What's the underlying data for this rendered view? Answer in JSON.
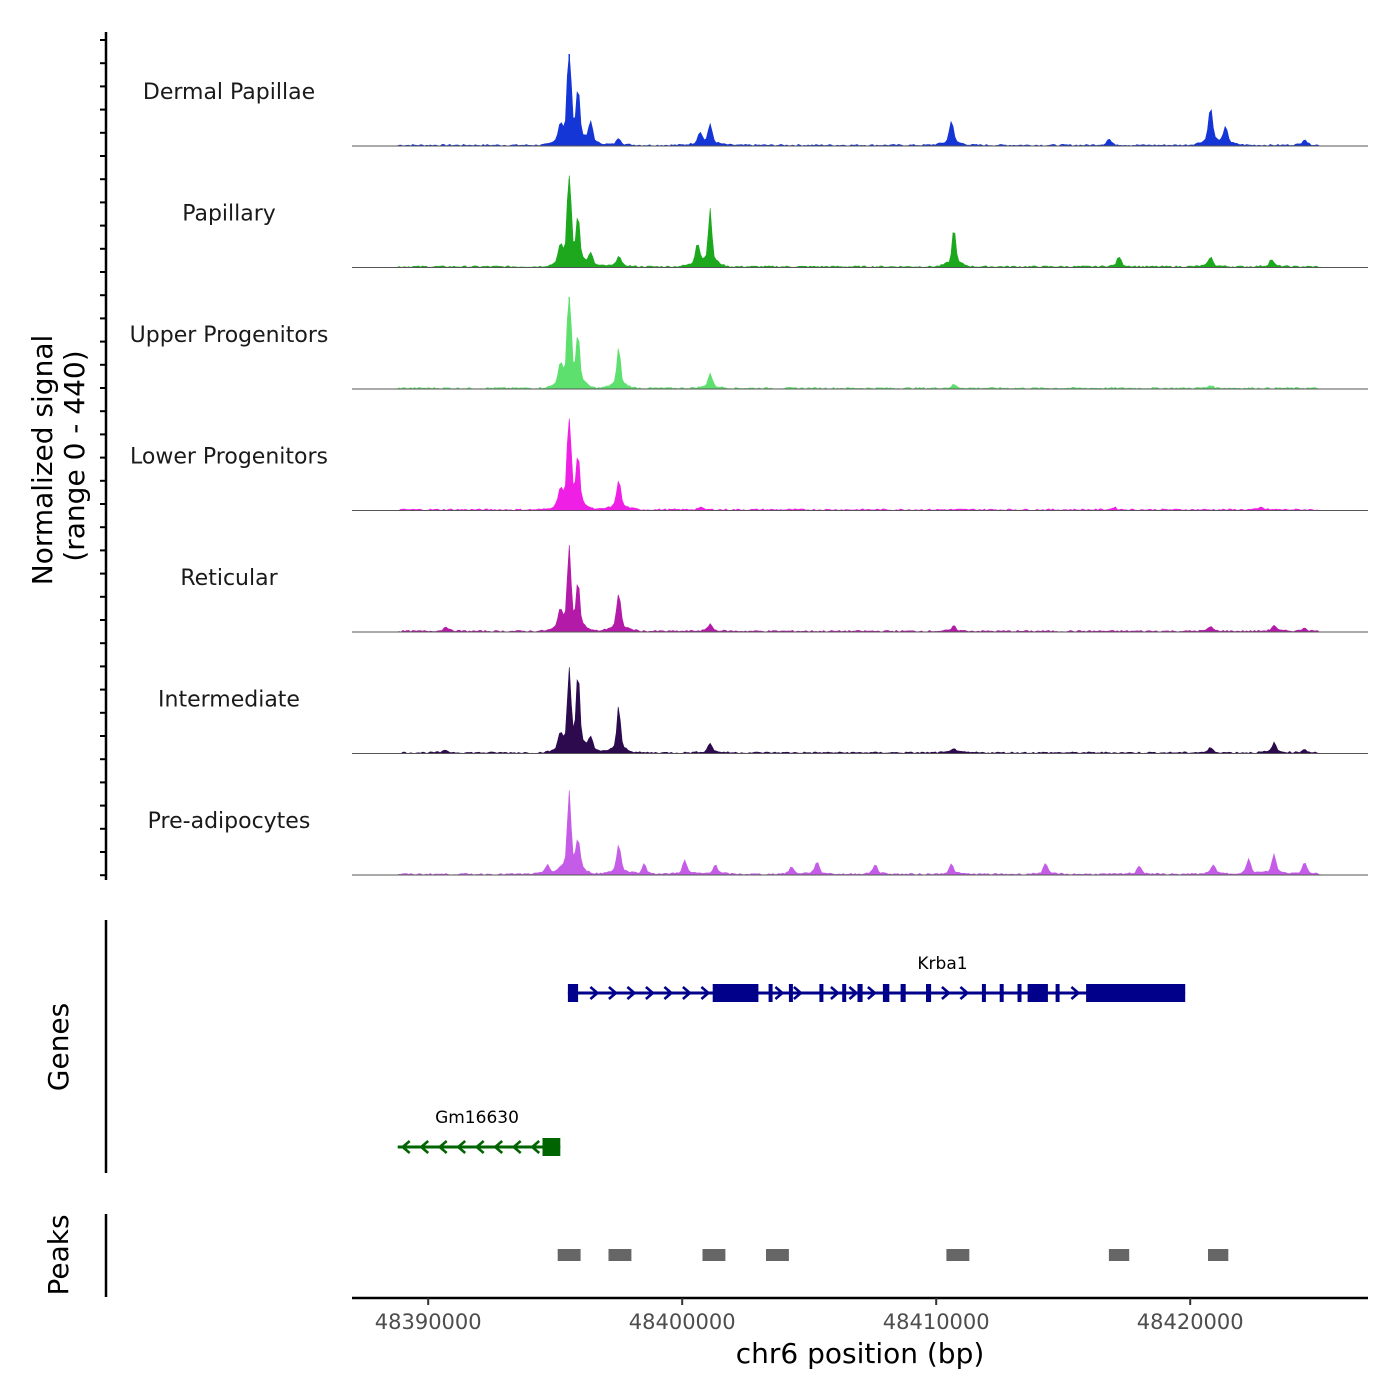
{
  "chart_data": {
    "type": "area",
    "chromosome": "chr6",
    "xlabel": "chr6 position (bp)",
    "ylabel": "Normalized signal",
    "ylabel_range": "(range 0 - 440)",
    "xlim": [
      48387000,
      48427000
    ],
    "ylim": [
      0,
      440
    ],
    "x_ticks": [
      48390000,
      48400000,
      48410000,
      48420000
    ],
    "x_tick_labels": [
      "48390000",
      "48400000",
      "48410000",
      "48420000"
    ],
    "tracks": [
      {
        "name": "Dermal Papillae",
        "color": "#1536d6",
        "peaks": [
          [
            48395200,
            60
          ],
          [
            48395550,
            440
          ],
          [
            48395900,
            200
          ],
          [
            48396400,
            90
          ],
          [
            48397500,
            30
          ],
          [
            48400700,
            50
          ],
          [
            48401100,
            80
          ],
          [
            48410600,
            100
          ],
          [
            48416800,
            25
          ],
          [
            48420800,
            150
          ],
          [
            48421400,
            70
          ],
          [
            48424500,
            25
          ]
        ]
      },
      {
        "name": "Papillary",
        "color": "#1da81d",
        "peaks": [
          [
            48395200,
            60
          ],
          [
            48395550,
            420
          ],
          [
            48395900,
            180
          ],
          [
            48396400,
            50
          ],
          [
            48397500,
            45
          ],
          [
            48400600,
            90
          ],
          [
            48401100,
            230
          ],
          [
            48410700,
            160
          ],
          [
            48417200,
            40
          ],
          [
            48420800,
            40
          ],
          [
            48423200,
            30
          ]
        ]
      },
      {
        "name": "Upper Progenitors",
        "color": "#5ee06e",
        "peaks": [
          [
            48395200,
            70
          ],
          [
            48395550,
            440
          ],
          [
            48395900,
            190
          ],
          [
            48397500,
            170
          ],
          [
            48401100,
            60
          ],
          [
            48410700,
            15
          ],
          [
            48420800,
            12
          ]
        ]
      },
      {
        "name": "Lower Progenitors",
        "color": "#f01fe6",
        "peaks": [
          [
            48395200,
            60
          ],
          [
            48395550,
            420
          ],
          [
            48395900,
            200
          ],
          [
            48397500,
            120
          ],
          [
            48400700,
            10
          ],
          [
            48417000,
            10
          ],
          [
            48422800,
            10
          ]
        ]
      },
      {
        "name": "Reticular",
        "color": "#b31aa8",
        "peaks": [
          [
            48390700,
            20
          ],
          [
            48395200,
            70
          ],
          [
            48395550,
            330
          ],
          [
            48395900,
            180
          ],
          [
            48397500,
            150
          ],
          [
            48401100,
            30
          ],
          [
            48410700,
            20
          ],
          [
            48420800,
            20
          ],
          [
            48423300,
            25
          ],
          [
            48424500,
            15
          ]
        ]
      },
      {
        "name": "Intermediate",
        "color": "#2d0a4e",
        "peaks": [
          [
            48390700,
            10
          ],
          [
            48395200,
            60
          ],
          [
            48395550,
            320
          ],
          [
            48395900,
            300
          ],
          [
            48396400,
            60
          ],
          [
            48397500,
            190
          ],
          [
            48401100,
            40
          ],
          [
            48410700,
            20
          ],
          [
            48420800,
            20
          ],
          [
            48423300,
            40
          ],
          [
            48424500,
            15
          ]
        ]
      },
      {
        "name": "Pre-adipocytes",
        "color": "#c45ce8",
        "peaks": [
          [
            48394700,
            40
          ],
          [
            48395550,
            330
          ],
          [
            48395900,
            120
          ],
          [
            48397500,
            120
          ],
          [
            48398500,
            40
          ],
          [
            48400100,
            55
          ],
          [
            48401300,
            40
          ],
          [
            48404300,
            30
          ],
          [
            48405300,
            50
          ],
          [
            48407600,
            40
          ],
          [
            48410600,
            40
          ],
          [
            48414300,
            40
          ],
          [
            48418000,
            35
          ],
          [
            48420900,
            40
          ],
          [
            48422300,
            60
          ],
          [
            48423300,
            80
          ],
          [
            48424500,
            50
          ]
        ]
      }
    ],
    "genes": [
      {
        "name": "Krba1",
        "color": "#00008b",
        "strand": "+",
        "start": 48395500,
        "end": 48419800,
        "exons": [
          [
            48395500,
            48395900
          ],
          [
            48401200,
            48403000
          ],
          [
            48403400,
            48403550
          ],
          [
            48404200,
            48404350
          ],
          [
            48405400,
            48405550
          ],
          [
            48406300,
            48406450
          ],
          [
            48406900,
            48407100
          ],
          [
            48407900,
            48408150
          ],
          [
            48408600,
            48408800
          ],
          [
            48409600,
            48409800
          ],
          [
            48411800,
            48411950
          ],
          [
            48412500,
            48412650
          ],
          [
            48413200,
            48413350
          ],
          [
            48413600,
            48414400
          ],
          [
            48414700,
            48414850
          ],
          [
            48415900,
            48419800
          ]
        ]
      },
      {
        "name": "Gm16630",
        "color": "#006400",
        "strand": "-",
        "start": 48388800,
        "end": 48395200,
        "exons": [
          [
            48394500,
            48395200
          ]
        ]
      }
    ],
    "peaks_track": {
      "label": "Peaks",
      "color": "#666666",
      "regions": [
        [
          48395100,
          48396000
        ],
        [
          48397100,
          48398000
        ],
        [
          48400800,
          48401700
        ],
        [
          48403300,
          48404200
        ],
        [
          48410400,
          48411300
        ],
        [
          48416800,
          48417600
        ],
        [
          48420700,
          48421500
        ]
      ]
    },
    "panels": {
      "signal": "Normalized signal",
      "genes": "Genes",
      "peaks": "Peaks"
    }
  }
}
